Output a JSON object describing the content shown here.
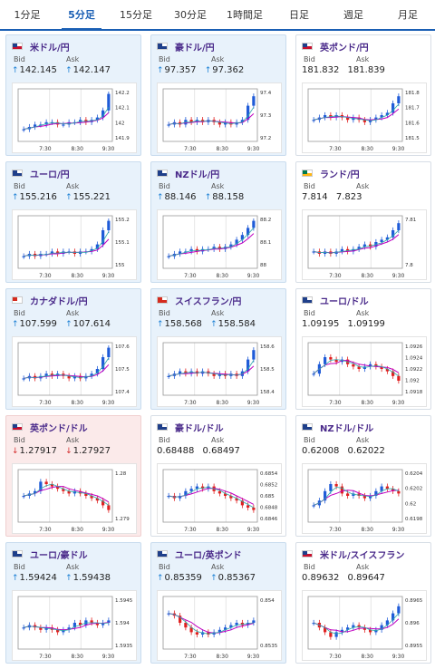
{
  "tabs": [
    {
      "label": "1分足",
      "active": false
    },
    {
      "label": "5分足",
      "active": true
    },
    {
      "label": "15分足",
      "active": false
    },
    {
      "label": "30分足",
      "active": false
    },
    {
      "label": "1時間足",
      "active": false
    },
    {
      "label": "日足",
      "active": false
    },
    {
      "label": "週足",
      "active": false
    },
    {
      "label": "月足",
      "active": false
    }
  ],
  "bid_label": "Bid",
  "ask_label": "Ask",
  "up_color": "#1a7fd4",
  "down_color": "#d42a2a",
  "candle_up_color": "#1f5bd8",
  "candle_down_color": "#e02020",
  "ma1_color": "#c000c0",
  "ma2_color": "#2aa8a8",
  "cards": [
    {
      "pair": "米ドル/円",
      "bid": "142.145",
      "ask": "142.147",
      "dir": "up",
      "flags": [
        "us",
        "jp"
      ],
      "x_ticks": [
        "7:30",
        "8:30",
        "9:30"
      ],
      "y_ticks": [
        "142.2",
        "142.1",
        "142",
        "141.9"
      ],
      "ylim": [
        141.85,
        142.25
      ],
      "trend": [
        0.2,
        0.25,
        0.3,
        0.3,
        0.35,
        0.35,
        0.3,
        0.3,
        0.35,
        0.35,
        0.4,
        0.35,
        0.4,
        0.45,
        0.6,
        0.95
      ]
    },
    {
      "pair": "豪ドル/円",
      "bid": "97.357",
      "ask": "97.362",
      "dir": "up",
      "flags": [
        "au",
        "jp"
      ],
      "x_ticks": [
        "7:30",
        "8:30",
        "9:30"
      ],
      "y_ticks": [
        "97.4",
        "97.3",
        "97.2"
      ],
      "ylim": [
        97.18,
        97.42
      ],
      "trend": [
        0.3,
        0.35,
        0.3,
        0.4,
        0.35,
        0.4,
        0.35,
        0.4,
        0.35,
        0.3,
        0.35,
        0.3,
        0.35,
        0.4,
        0.7,
        0.9
      ]
    },
    {
      "pair": "英ポンド/円",
      "bid": "181.832",
      "ask": "181.839",
      "dir": "neutral",
      "flags": [
        "gb",
        "jp"
      ],
      "x_ticks": [
        "7:30",
        "8:30",
        "9:30"
      ],
      "y_ticks": [
        "181.8",
        "181.7",
        "181.6",
        "181.5"
      ],
      "ylim": [
        181.45,
        181.85
      ],
      "trend": [
        0.4,
        0.45,
        0.5,
        0.45,
        0.5,
        0.45,
        0.4,
        0.45,
        0.4,
        0.35,
        0.4,
        0.45,
        0.5,
        0.55,
        0.75,
        0.9
      ]
    },
    {
      "pair": "ユーロ/円",
      "bid": "155.216",
      "ask": "155.221",
      "dir": "up",
      "flags": [
        "eu",
        "jp"
      ],
      "x_ticks": [
        "7:30",
        "8:30",
        "9:30"
      ],
      "y_ticks": [
        "155.2",
        "155.1",
        "155"
      ],
      "ylim": [
        154.95,
        155.25
      ],
      "trend": [
        0.2,
        0.25,
        0.2,
        0.25,
        0.25,
        0.3,
        0.25,
        0.3,
        0.3,
        0.25,
        0.3,
        0.3,
        0.35,
        0.45,
        0.75,
        0.95
      ]
    },
    {
      "pair": "NZドル/円",
      "bid": "88.146",
      "ask": "88.158",
      "dir": "up",
      "flags": [
        "nz",
        "jp"
      ],
      "x_ticks": [
        "7:30",
        "8:30",
        "9:30"
      ],
      "y_ticks": [
        "88.2",
        "88.1",
        "88"
      ],
      "ylim": [
        87.95,
        88.22
      ],
      "trend": [
        0.2,
        0.25,
        0.3,
        0.3,
        0.35,
        0.3,
        0.35,
        0.35,
        0.4,
        0.35,
        0.4,
        0.45,
        0.55,
        0.65,
        0.8,
        0.95
      ]
    },
    {
      "pair": "ランド/円",
      "bid": "7.814",
      "ask": "7.823",
      "dir": "neutral",
      "flags": [
        "za",
        "jp"
      ],
      "x_ticks": [
        "7:30",
        "8:30",
        "9:30"
      ],
      "y_ticks": [
        "7.81",
        "7.8"
      ],
      "ylim": [
        7.79,
        7.825
      ],
      "trend": [
        0.3,
        0.25,
        0.3,
        0.25,
        0.3,
        0.35,
        0.3,
        0.35,
        0.4,
        0.45,
        0.4,
        0.5,
        0.55,
        0.6,
        0.75,
        0.9
      ]
    },
    {
      "pair": "カナダドル/円",
      "bid": "107.599",
      "ask": "107.614",
      "dir": "up",
      "flags": [
        "ca",
        "jp"
      ],
      "x_ticks": [
        "7:30",
        "8:30",
        "9:30"
      ],
      "y_ticks": [
        "107.6",
        "107.5",
        "107.4"
      ],
      "ylim": [
        107.35,
        107.65
      ],
      "trend": [
        0.3,
        0.35,
        0.3,
        0.35,
        0.4,
        0.35,
        0.4,
        0.35,
        0.3,
        0.35,
        0.3,
        0.35,
        0.4,
        0.5,
        0.75,
        0.95
      ]
    },
    {
      "pair": "スイスフラン/円",
      "bid": "158.568",
      "ask": "158.584",
      "dir": "up",
      "flags": [
        "ch",
        "jp"
      ],
      "x_ticks": [
        "7:30",
        "8:30",
        "9:30"
      ],
      "y_ticks": [
        "158.6",
        "158.5",
        "158.4"
      ],
      "ylim": [
        158.3,
        158.65
      ],
      "trend": [
        0.35,
        0.4,
        0.45,
        0.4,
        0.45,
        0.4,
        0.45,
        0.4,
        0.35,
        0.4,
        0.35,
        0.4,
        0.35,
        0.45,
        0.7,
        0.9
      ]
    },
    {
      "pair": "ユーロ/ドル",
      "bid": "1.09195",
      "ask": "1.09199",
      "dir": "neutral",
      "flags": [
        "eu",
        "us"
      ],
      "x_ticks": [
        "7:30",
        "8:30",
        "9:30"
      ],
      "y_ticks": [
        "1.0926",
        "1.0924",
        "1.0922",
        "1.092",
        "1.0918"
      ],
      "ylim": [
        1.0916,
        1.0927
      ],
      "trend": [
        0.4,
        0.6,
        0.75,
        0.7,
        0.65,
        0.7,
        0.6,
        0.55,
        0.5,
        0.55,
        0.6,
        0.55,
        0.5,
        0.45,
        0.35,
        0.25
      ]
    },
    {
      "pair": "英ポンド/ドル",
      "bid": "1.27917",
      "ask": "1.27927",
      "dir": "down",
      "flags": [
        "gb",
        "us"
      ],
      "x_ticks": [
        "7:30",
        "8:30",
        "9:30"
      ],
      "y_ticks": [
        "1.28",
        "1.279"
      ],
      "ylim": [
        1.2786,
        1.2806
      ],
      "trend": [
        0.5,
        0.55,
        0.6,
        0.8,
        0.75,
        0.7,
        0.65,
        0.6,
        0.55,
        0.6,
        0.55,
        0.5,
        0.45,
        0.4,
        0.3,
        0.2
      ]
    },
    {
      "pair": "豪ドル/ドル",
      "bid": "0.68488",
      "ask": "0.68497",
      "dir": "neutral",
      "flags": [
        "au",
        "us"
      ],
      "x_ticks": [
        "7:30",
        "8:30",
        "9:30"
      ],
      "y_ticks": [
        "0.6854",
        "0.6852",
        "0.685",
        "0.6848",
        "0.6846"
      ],
      "ylim": [
        0.6845,
        0.6856
      ],
      "trend": [
        0.5,
        0.45,
        0.5,
        0.6,
        0.65,
        0.7,
        0.65,
        0.7,
        0.6,
        0.55,
        0.5,
        0.45,
        0.4,
        0.3,
        0.25,
        0.2
      ]
    },
    {
      "pair": "NZドル/ドル",
      "bid": "0.62008",
      "ask": "0.62022",
      "dir": "neutral",
      "flags": [
        "nz",
        "us"
      ],
      "x_ticks": [
        "7:30",
        "8:30",
        "9:30"
      ],
      "y_ticks": [
        "0.6204",
        "0.6202",
        "0.62",
        "0.6198"
      ],
      "ylim": [
        0.6197,
        0.6205
      ],
      "trend": [
        0.3,
        0.4,
        0.6,
        0.75,
        0.7,
        0.55,
        0.5,
        0.55,
        0.5,
        0.45,
        0.5,
        0.6,
        0.7,
        0.65,
        0.6,
        0.55
      ]
    },
    {
      "pair": "ユーロ/豪ドル",
      "bid": "1.59424",
      "ask": "1.59438",
      "dir": "up",
      "flags": [
        "eu",
        "au"
      ],
      "x_ticks": [
        "7:30",
        "8:30",
        "9:30"
      ],
      "y_ticks": [
        "1.5945",
        "1.594",
        "1.5935"
      ],
      "ylim": [
        1.5933,
        1.5948
      ],
      "trend": [
        0.4,
        0.45,
        0.4,
        0.35,
        0.4,
        0.35,
        0.3,
        0.35,
        0.4,
        0.5,
        0.45,
        0.55,
        0.5,
        0.45,
        0.5,
        0.55
      ]
    },
    {
      "pair": "ユーロ/英ポンド",
      "bid": "0.85359",
      "ask": "0.85367",
      "dir": "up",
      "flags": [
        "eu",
        "gb"
      ],
      "x_ticks": [
        "7:30",
        "8:30",
        "9:30"
      ],
      "y_ticks": [
        "0.854",
        "0.8535"
      ],
      "ylim": [
        0.8532,
        0.8542
      ],
      "trend": [
        0.7,
        0.65,
        0.5,
        0.4,
        0.3,
        0.25,
        0.3,
        0.25,
        0.3,
        0.35,
        0.4,
        0.45,
        0.5,
        0.45,
        0.5,
        0.55
      ]
    },
    {
      "pair": "米ドル/スイスフラン",
      "bid": "0.89632",
      "ask": "0.89647",
      "dir": "neutral",
      "flags": [
        "us",
        "ch"
      ],
      "x_ticks": [
        "7:30",
        "8:30",
        "9:30"
      ],
      "y_ticks": [
        "0.8965",
        "0.896",
        "0.8955"
      ],
      "ylim": [
        0.8953,
        0.8967
      ],
      "trend": [
        0.5,
        0.4,
        0.3,
        0.2,
        0.3,
        0.35,
        0.4,
        0.45,
        0.4,
        0.35,
        0.3,
        0.35,
        0.45,
        0.55,
        0.7,
        0.85
      ]
    }
  ]
}
